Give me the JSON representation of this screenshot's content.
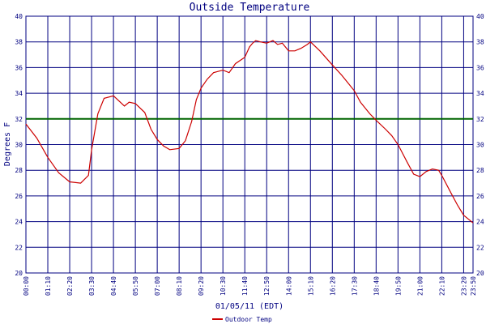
{
  "chart_data": {
    "type": "line",
    "title": "Outside Temperature",
    "xlabel": "01/05/11 (EDT)",
    "ylabel": "Degrees F",
    "ylim": [
      20,
      40
    ],
    "y_ticks": [
      "20",
      "22",
      "24",
      "26",
      "28",
      "30",
      "32",
      "34",
      "36",
      "38",
      "40"
    ],
    "x_ticks": [
      "00:00",
      "01:10",
      "02:20",
      "03:30",
      "04:40",
      "05:50",
      "07:00",
      "08:10",
      "09:20",
      "10:30",
      "11:40",
      "12:50",
      "14:00",
      "15:10",
      "16:20",
      "17:30",
      "18:40",
      "19:50",
      "21:00",
      "22:10",
      "23:20",
      "23:50"
    ],
    "grid": true,
    "reference_line": {
      "value": 32,
      "color": "#006400"
    },
    "series": [
      {
        "name": "Outdoor Temp",
        "color": "#cc0000",
        "x": [
          "00:00",
          "00:35",
          "01:10",
          "01:45",
          "02:20",
          "02:55",
          "03:20",
          "03:30",
          "03:50",
          "04:10",
          "04:40",
          "05:15",
          "05:30",
          "05:50",
          "06:20",
          "06:40",
          "07:00",
          "07:20",
          "07:40",
          "08:10",
          "08:30",
          "08:50",
          "09:05",
          "09:20",
          "09:40",
          "10:00",
          "10:30",
          "10:50",
          "11:10",
          "11:40",
          "11:55",
          "12:05",
          "12:15",
          "12:30",
          "12:50",
          "13:10",
          "13:25",
          "13:40",
          "14:00",
          "14:20",
          "14:40",
          "15:00",
          "15:10",
          "15:40",
          "16:20",
          "16:50",
          "17:10",
          "17:30",
          "17:50",
          "18:20",
          "18:40",
          "19:10",
          "19:30",
          "19:50",
          "20:20",
          "20:40",
          "21:00",
          "21:20",
          "21:40",
          "22:00",
          "22:10",
          "22:40",
          "23:00",
          "23:20",
          "23:50"
        ],
        "values": [
          31.6,
          30.5,
          29.0,
          27.8,
          27.1,
          27.0,
          27.6,
          29.6,
          32.4,
          33.6,
          33.8,
          33.0,
          33.3,
          33.2,
          32.5,
          31.2,
          30.4,
          29.9,
          29.6,
          29.7,
          30.3,
          31.8,
          33.5,
          34.4,
          35.1,
          35.6,
          35.8,
          35.6,
          36.3,
          36.8,
          37.6,
          37.9,
          38.1,
          38.0,
          37.9,
          38.1,
          37.8,
          37.9,
          37.3,
          37.3,
          37.5,
          37.8,
          38.0,
          37.3,
          36.2,
          35.4,
          34.8,
          34.2,
          33.3,
          32.4,
          31.9,
          31.2,
          30.7,
          30.0,
          28.6,
          27.7,
          27.5,
          27.9,
          28.1,
          28.0,
          27.6,
          26.2,
          25.3,
          24.5,
          23.9
        ]
      }
    ],
    "legend_position": "bottom-center"
  }
}
